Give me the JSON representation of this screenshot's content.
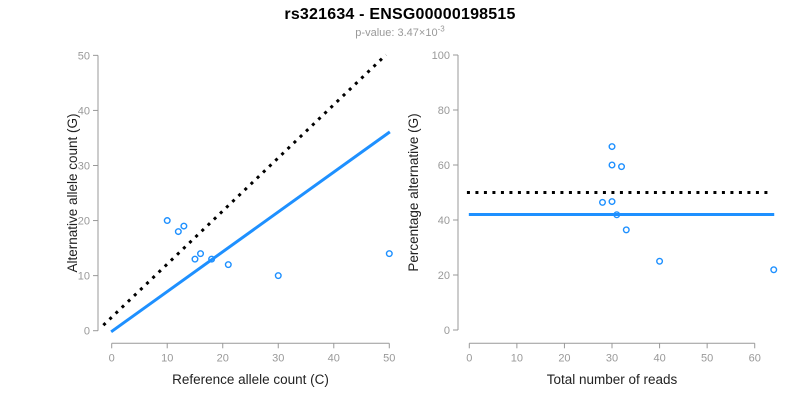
{
  "header": {
    "title": "rs321634 - ENSG00000198515",
    "subtitle_prefix": "p-value: 3.47×10",
    "subtitle_exponent": "-3"
  },
  "colors": {
    "point_and_fit_blue": "#1e90ff",
    "dotted_black": "#000000",
    "axis_gray": "#999999",
    "tick_label_gray": "#999999",
    "axis_title_dark": "#222222",
    "subtitle_gray": "#999999"
  },
  "chart_data": [
    {
      "type": "scatter",
      "name": "reference-vs-alternative-count",
      "xlabel": "Reference allele count (C)",
      "ylabel": "Alternative allele count (G)",
      "xlim": [
        0,
        50
      ],
      "ylim": [
        0,
        50
      ],
      "xticks": [
        0,
        10,
        20,
        30,
        40,
        50
      ],
      "yticks": [
        0,
        10,
        20,
        30,
        40,
        50
      ],
      "grid": false,
      "legend": "none",
      "points": [
        [
          10,
          20
        ],
        [
          12,
          18
        ],
        [
          13,
          19
        ],
        [
          15,
          13
        ],
        [
          16,
          14
        ],
        [
          18,
          13
        ],
        [
          21,
          12
        ],
        [
          30,
          10
        ],
        [
          50,
          14
        ]
      ],
      "point_color": "#1e90ff",
      "lines": [
        {
          "name": "identity-line",
          "style": "dotted",
          "color": "#000000",
          "width": 3,
          "from": [
            -1.5,
            1.0
          ],
          "to": [
            49.4,
            50.1
          ]
        },
        {
          "name": "fit-line",
          "style": "solid",
          "color": "#1e90ff",
          "width": 3,
          "from": [
            -0.1,
            -0.2
          ],
          "to": [
            50.1,
            36.1
          ]
        }
      ]
    },
    {
      "type": "scatter",
      "name": "total-reads-vs-percentage-alternative",
      "xlabel": "Total number of reads",
      "ylabel": "Percentage alternative (G)",
      "xlim": [
        0,
        64
      ],
      "ylim": [
        0,
        100
      ],
      "xticks": [
        0,
        10,
        20,
        30,
        40,
        50,
        60
      ],
      "yticks": [
        0,
        20,
        40,
        60,
        80,
        100
      ],
      "grid": false,
      "legend": "none",
      "points": [
        [
          28,
          46.4
        ],
        [
          30,
          66.7
        ],
        [
          30,
          60
        ],
        [
          30,
          46.7
        ],
        [
          31,
          41.9
        ],
        [
          32,
          59.4
        ],
        [
          33,
          36.4
        ],
        [
          40,
          25
        ],
        [
          64,
          21.9
        ]
      ],
      "point_color": "#1e90ff",
      "lines": [
        {
          "name": "null-50-percent-line",
          "style": "dotted",
          "color": "#000000",
          "width": 3,
          "from": [
            -0.5,
            50
          ],
          "to": [
            63,
            50
          ]
        },
        {
          "name": "fit-line",
          "style": "solid",
          "color": "#1e90ff",
          "width": 3,
          "from": [
            -0.1,
            42
          ],
          "to": [
            64.1,
            42
          ]
        }
      ]
    }
  ]
}
